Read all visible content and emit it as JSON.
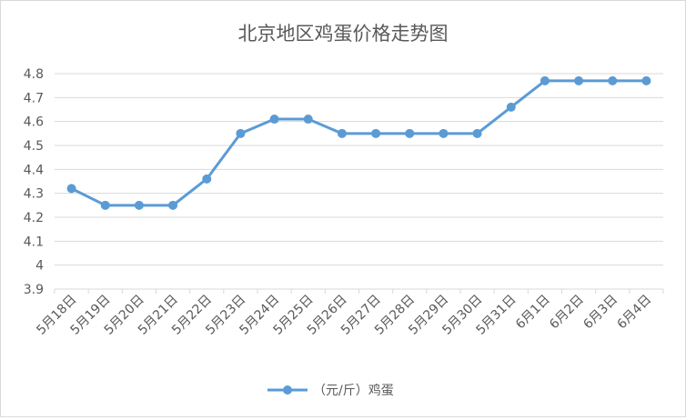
{
  "chart_data": {
    "type": "line",
    "title": "北京地区鸡蛋价格走势图",
    "xlabel": "",
    "ylabel": "",
    "categories": [
      "5月18日",
      "5月19日",
      "5月20日",
      "5月21日",
      "5月22日",
      "5月23日",
      "5月24日",
      "5月25日",
      "5月26日",
      "5月27日",
      "5月28日",
      "5月29日",
      "5月30日",
      "5月31日",
      "6月1日",
      "6月2日",
      "6月3日",
      "6月4日"
    ],
    "series": [
      {
        "name": "（元/斤）鸡蛋",
        "values": [
          4.32,
          4.25,
          4.25,
          4.25,
          4.36,
          4.55,
          4.61,
          4.61,
          4.55,
          4.55,
          4.55,
          4.55,
          4.55,
          4.66,
          4.77,
          4.77,
          4.77,
          4.77
        ]
      }
    ],
    "ylim": [
      3.9,
      4.8
    ],
    "yticks": [
      "3.9",
      "4",
      "4.1",
      "4.2",
      "4.3",
      "4.4",
      "4.5",
      "4.6",
      "4.7",
      "4.8"
    ],
    "grid": true,
    "legend": "bottom",
    "colors": {
      "line": "#5b9bd5",
      "grid": "#d9d9d9",
      "text": "#595959"
    }
  }
}
